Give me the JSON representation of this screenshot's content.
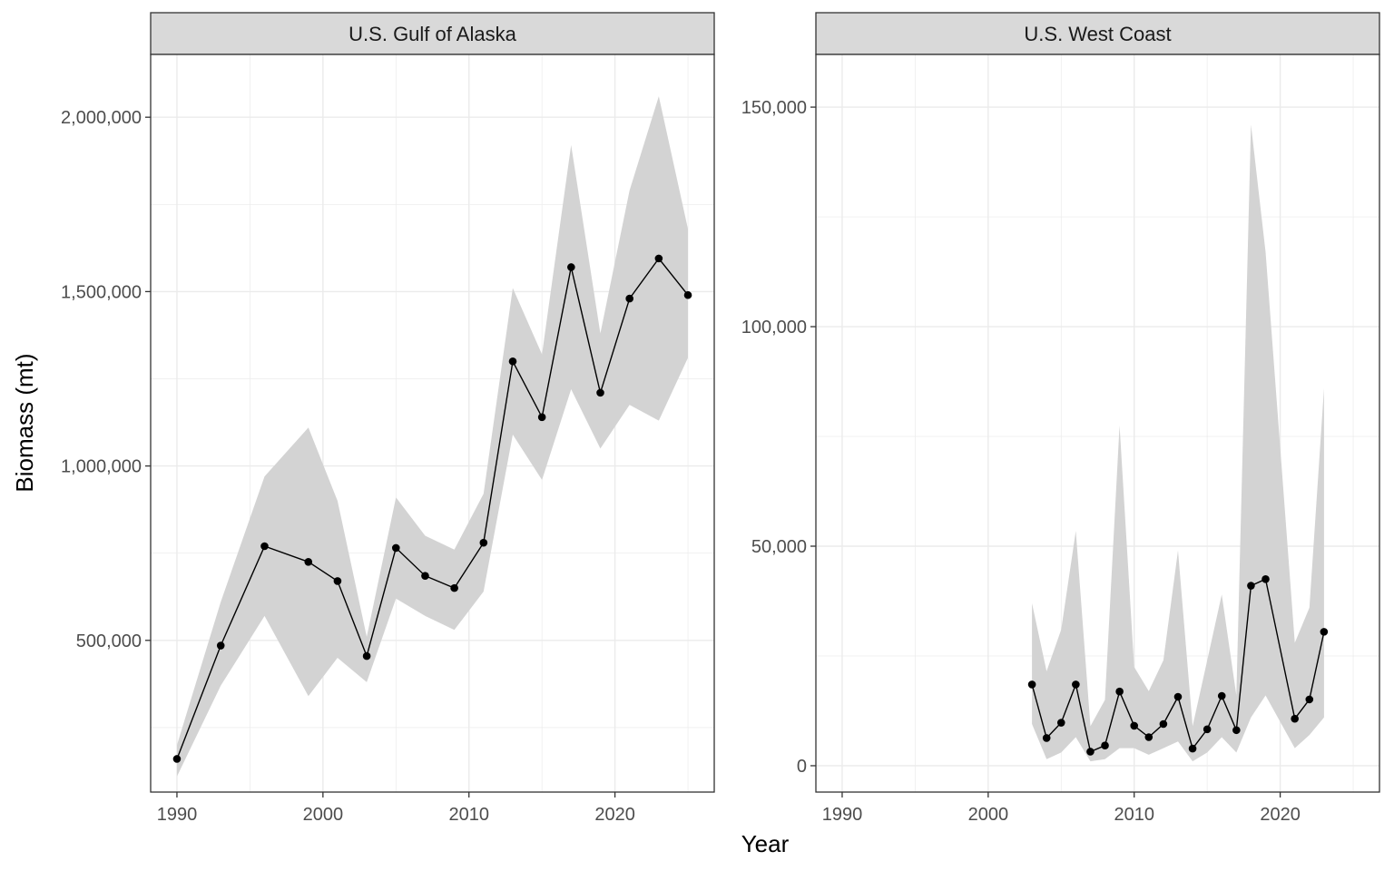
{
  "figure": {
    "xlabel": "Year",
    "ylabel": "Biomass (mt)"
  },
  "colors": {
    "ribbon": "#d3d3d3",
    "line": "#000000",
    "grid": "#ebebeb",
    "strip_fill": "#d9d9d9",
    "border": "#333333"
  },
  "chart_data": [
    {
      "type": "line",
      "title": "U.S. Gulf of Alaska",
      "x_ticks": [
        1990,
        2000,
        2010,
        2020
      ],
      "x_tick_labels": [
        "1990",
        "2000",
        "2010",
        "2020"
      ],
      "y_ticks": [
        500000,
        1000000,
        1500000,
        2000000
      ],
      "y_tick_labels": [
        "500,000",
        "1,000,000",
        "1,500,000",
        "2,000,000"
      ],
      "xlim": [
        1988.2,
        1990,
        2026.8
      ],
      "ylim": [
        65000,
        2180000
      ],
      "grid": true,
      "series": [
        {
          "x": [
            1990,
            1993,
            1996,
            1999,
            2001,
            2003,
            2005,
            2007,
            2009,
            2011,
            2013,
            2015,
            2017,
            2019,
            2021,
            2023,
            2025
          ],
          "y": [
            160000,
            485000,
            770000,
            725000,
            670000,
            455000,
            765000,
            685000,
            650000,
            780000,
            1300000,
            1140000,
            1570000,
            1210000,
            1480000,
            1595000,
            1490000
          ],
          "lower": [
            110000,
            370000,
            570000,
            340000,
            450000,
            380000,
            620000,
            570000,
            530000,
            640000,
            1090000,
            960000,
            1220000,
            1050000,
            1175000,
            1130000,
            1310000
          ],
          "upper": [
            200000,
            610000,
            970000,
            1110000,
            900000,
            510000,
            910000,
            800000,
            760000,
            920000,
            1510000,
            1320000,
            1920000,
            1380000,
            1790000,
            2060000,
            1680000
          ]
        }
      ]
    },
    {
      "type": "line",
      "title": "U.S. West Coast",
      "x_ticks": [
        1990,
        2000,
        2010,
        2020
      ],
      "x_tick_labels": [
        "1990",
        "2000",
        "2010",
        "2020"
      ],
      "y_ticks": [
        0,
        50000,
        100000,
        150000
      ],
      "y_tick_labels": [
        "0",
        "50,000",
        "100,000",
        "150,000"
      ],
      "xlim": [
        1988.2,
        2026.8
      ],
      "ylim": [
        -6000,
        162000
      ],
      "grid": true,
      "series": [
        {
          "x": [
            2003,
            2004,
            2005,
            2006,
            2007,
            2008,
            2009,
            2010,
            2011,
            2012,
            2013,
            2014,
            2015,
            2016,
            2017,
            2018,
            2019,
            2021,
            2022,
            2023
          ],
          "y": [
            18500,
            6300,
            9800,
            18500,
            3200,
            4600,
            16900,
            9100,
            6500,
            9500,
            15700,
            3900,
            8300,
            15900,
            8100,
            41000,
            42500,
            10700,
            15100,
            30500
          ],
          "lower": [
            9500,
            1500,
            3000,
            6500,
            1000,
            1500,
            4000,
            4000,
            2500,
            4000,
            5500,
            1000,
            3000,
            6500,
            3000,
            11000,
            16000,
            4000,
            7000,
            11000
          ],
          "upper": [
            37000,
            21500,
            31000,
            53500,
            9000,
            15000,
            77500,
            22500,
            17000,
            24000,
            49000,
            9000,
            24000,
            39000,
            16000,
            146000,
            117000,
            28000,
            36000,
            86000
          ]
        }
      ]
    }
  ]
}
